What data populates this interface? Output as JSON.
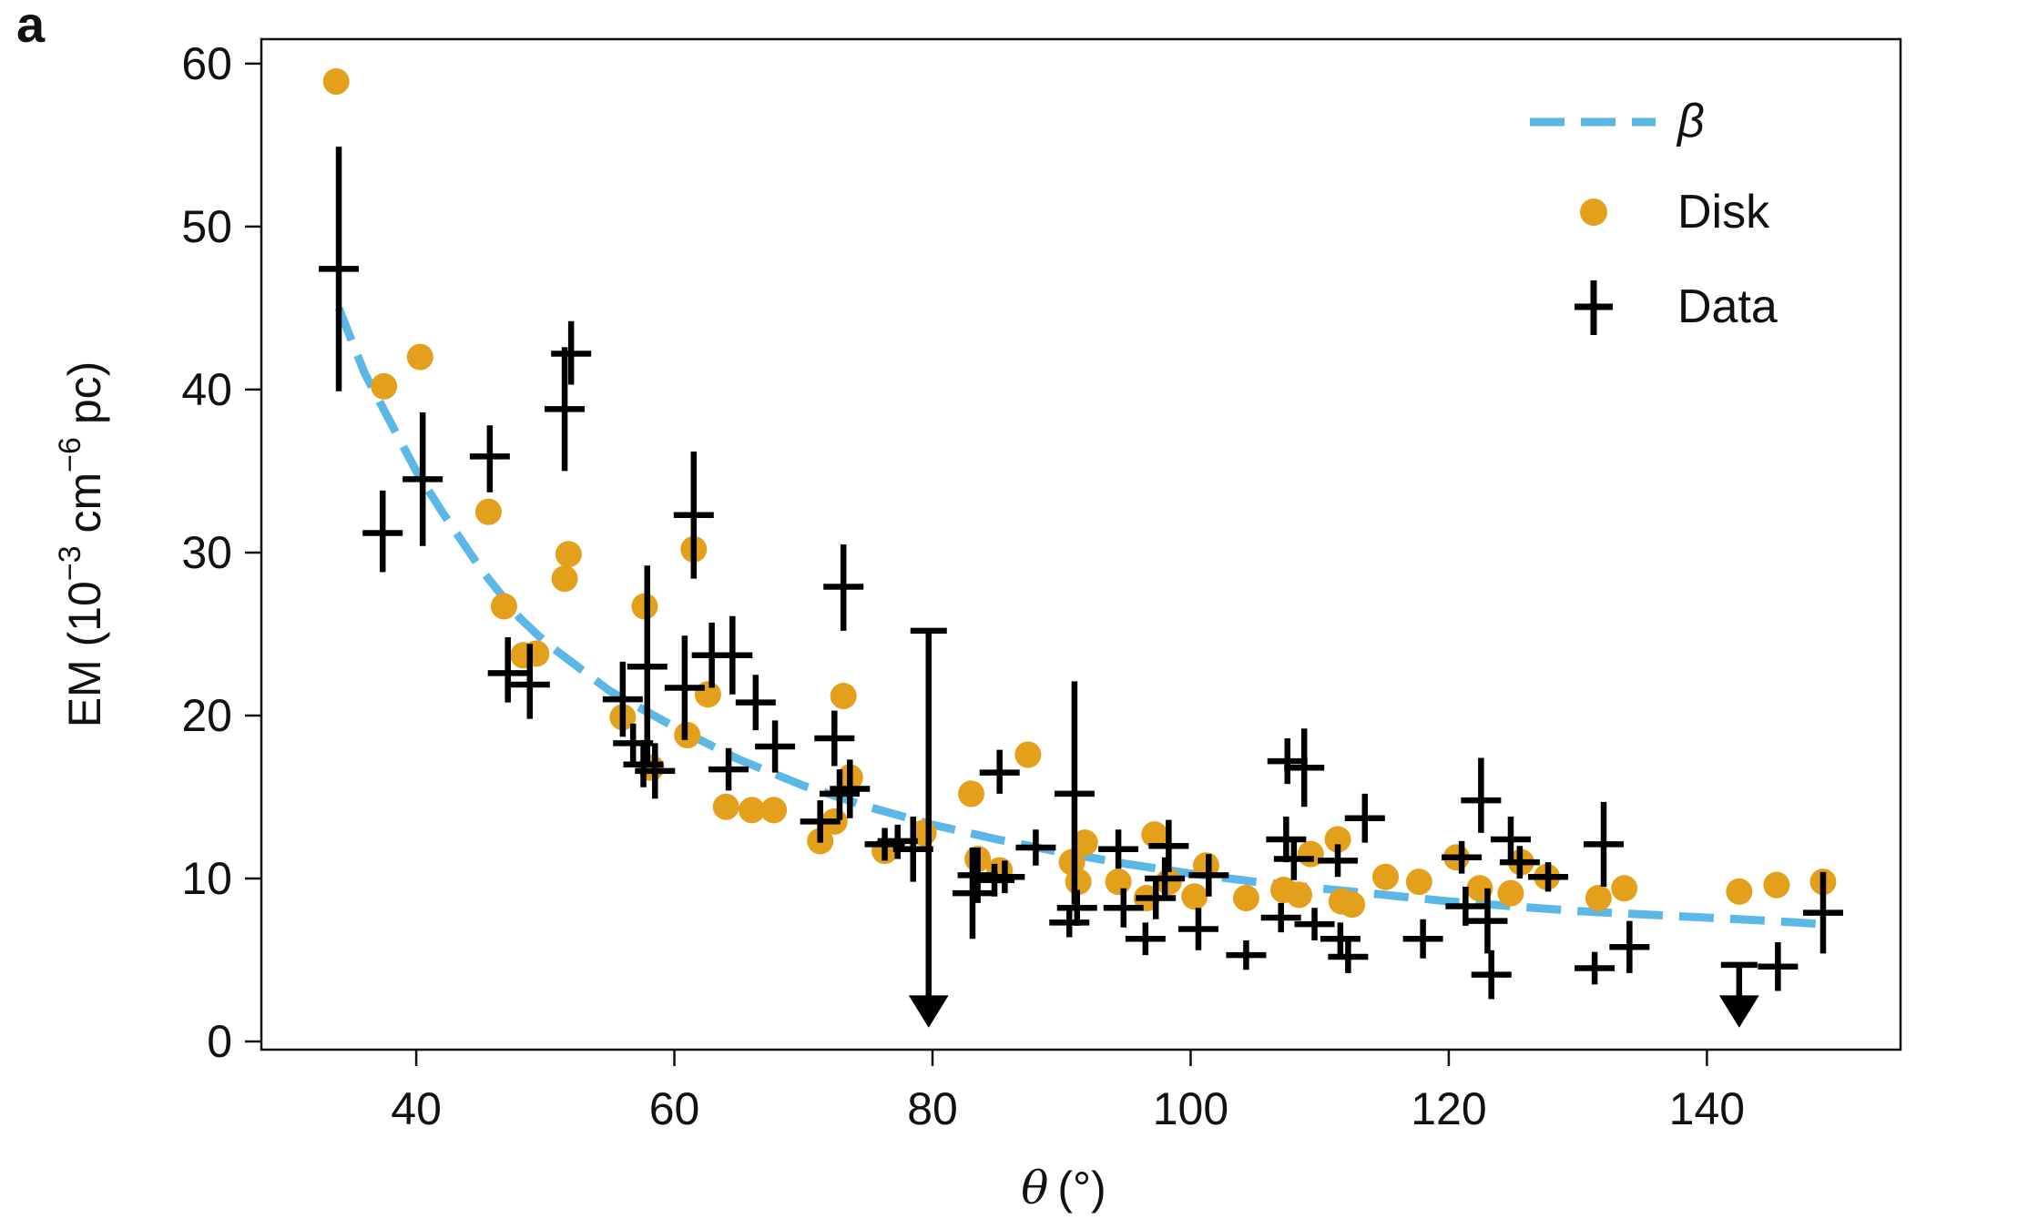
{
  "panel_label": "a",
  "colors": {
    "model": "#5bb8e6",
    "disk": "#e3a01b",
    "data": "#000000",
    "axis": "#111111"
  },
  "chart_data": {
    "type": "scatter",
    "xlabel_symbol": "θ",
    "xlabel_unit": "(°)",
    "ylabel": "EM (10",
    "ylabel_exp1": "−3",
    "ylabel_mid": " cm",
    "ylabel_exp2": "−6",
    "ylabel_end": " pc)",
    "xlim": [
      28,
      155
    ],
    "ylim": [
      -0.5,
      61.5
    ],
    "xticks": [
      40,
      60,
      80,
      100,
      120,
      140
    ],
    "yticks": [
      0,
      10,
      20,
      30,
      40,
      50,
      60
    ],
    "xtick_labels": [
      "40",
      "60",
      "80",
      "100",
      "120",
      "140"
    ],
    "ytick_labels": [
      "0",
      "10",
      "20",
      "30",
      "40",
      "50",
      "60"
    ],
    "grid": false,
    "legend_position": "top-right",
    "legend": {
      "model": "β",
      "disk": "Disk",
      "data": "Data"
    },
    "model_curve": {
      "name": "β",
      "style": "dashed",
      "x": [
        34,
        36,
        38,
        40,
        42,
        45,
        48,
        50,
        55,
        60,
        65,
        70,
        75,
        80,
        85,
        90,
        95,
        100,
        105,
        110,
        115,
        120,
        125,
        130,
        135,
        140,
        145,
        149
      ],
      "y": [
        45,
        41,
        38,
        35,
        32.5,
        29,
        26,
        24.5,
        21.5,
        19.3,
        17.3,
        15.7,
        14.4,
        13.3,
        12.4,
        11.6,
        10.9,
        10.3,
        9.8,
        9.4,
        9.0,
        8.6,
        8.3,
        8.0,
        7.8,
        7.6,
        7.4,
        7.2
      ]
    },
    "disk": {
      "name": "Disk",
      "points": [
        [
          33.8,
          58.9
        ],
        [
          37.5,
          40.2
        ],
        [
          40.3,
          42.0
        ],
        [
          45.6,
          32.5
        ],
        [
          46.8,
          26.7
        ],
        [
          48.3,
          23.7
        ],
        [
          49.3,
          23.8
        ],
        [
          51.5,
          28.4
        ],
        [
          51.8,
          29.9
        ],
        [
          56.0,
          19.9
        ],
        [
          57.7,
          26.7
        ],
        [
          58.2,
          16.8
        ],
        [
          61.0,
          18.8
        ],
        [
          61.5,
          30.2
        ],
        [
          62.6,
          21.3
        ],
        [
          64.0,
          14.4
        ],
        [
          66.0,
          14.2
        ],
        [
          67.7,
          14.2
        ],
        [
          71.3,
          12.3
        ],
        [
          72.4,
          13.5
        ],
        [
          73.1,
          21.2
        ],
        [
          73.6,
          16.2
        ],
        [
          76.3,
          11.7
        ],
        [
          79.3,
          12.8
        ],
        [
          83.0,
          15.2
        ],
        [
          83.5,
          11.2
        ],
        [
          85.2,
          10.5
        ],
        [
          87.4,
          17.6
        ],
        [
          90.8,
          11.0
        ],
        [
          91.3,
          9.8
        ],
        [
          91.8,
          12.2
        ],
        [
          94.4,
          9.8
        ],
        [
          96.6,
          8.8
        ],
        [
          97.2,
          12.7
        ],
        [
          98.3,
          9.8
        ],
        [
          100.3,
          8.9
        ],
        [
          101.2,
          10.8
        ],
        [
          104.3,
          8.8
        ],
        [
          107.2,
          9.3
        ],
        [
          108.4,
          9.0
        ],
        [
          109.3,
          11.5
        ],
        [
          111.4,
          12.4
        ],
        [
          111.7,
          8.6
        ],
        [
          112.5,
          8.4
        ],
        [
          115.1,
          10.1
        ],
        [
          117.7,
          9.8
        ],
        [
          120.6,
          11.3
        ],
        [
          122.4,
          9.4
        ],
        [
          124.8,
          9.1
        ],
        [
          125.6,
          11.0
        ],
        [
          127.6,
          10.1
        ],
        [
          131.6,
          8.8
        ],
        [
          133.6,
          9.4
        ],
        [
          142.5,
          9.2
        ],
        [
          145.4,
          9.6
        ],
        [
          149.0,
          9.8
        ]
      ]
    },
    "data": {
      "name": "Data",
      "points": [
        [
          34.0,
          47.4,
          39.9,
          54.9
        ],
        [
          37.4,
          31.2,
          28.8,
          33.8
        ],
        [
          40.5,
          34.5,
          30.4,
          38.6
        ],
        [
          45.7,
          35.9,
          33.7,
          37.8
        ],
        [
          47.1,
          22.6,
          20.8,
          24.8
        ],
        [
          48.8,
          21.9,
          19.8,
          24.4
        ],
        [
          51.5,
          38.8,
          35.0,
          42.6
        ],
        [
          52.0,
          42.2,
          40.3,
          44.2
        ],
        [
          56.0,
          21.0,
          18.7,
          23.3
        ],
        [
          56.8,
          18.3,
          17.0,
          19.5
        ],
        [
          57.6,
          17.0,
          15.6,
          18.5
        ],
        [
          57.9,
          23.0,
          16.9,
          29.2
        ],
        [
          58.5,
          16.6,
          14.9,
          18.3
        ],
        [
          60.8,
          21.7,
          18.5,
          24.9
        ],
        [
          61.5,
          32.3,
          28.4,
          36.2
        ],
        [
          62.9,
          23.7,
          21.7,
          25.7
        ],
        [
          64.2,
          16.7,
          15.4,
          18.0
        ],
        [
          64.5,
          23.7,
          21.3,
          26.1
        ],
        [
          66.3,
          20.8,
          19.1,
          22.5
        ],
        [
          67.8,
          18.1,
          16.5,
          19.7
        ],
        [
          71.3,
          13.5,
          12.2,
          14.8
        ],
        [
          72.4,
          18.6,
          16.9,
          20.3
        ],
        [
          72.8,
          15.2,
          13.6,
          16.7
        ],
        [
          73.1,
          27.9,
          25.2,
          30.5
        ],
        [
          73.6,
          15.5,
          13.7,
          17.3
        ],
        [
          76.3,
          12.1,
          11.1,
          13.1
        ],
        [
          77.3,
          12.3,
          11.2,
          13.3
        ],
        [
          78.5,
          11.8,
          9.8,
          13.8
        ],
        [
          83.1,
          9.1,
          6.3,
          11.9
        ],
        [
          83.5,
          10.2,
          8.5,
          11.9
        ],
        [
          84.8,
          9.9,
          8.9,
          10.9
        ],
        [
          85.6,
          10.1,
          9.1,
          11.1
        ],
        [
          85.2,
          16.5,
          15.2,
          17.9
        ],
        [
          88.0,
          11.9,
          10.8,
          13.0
        ],
        [
          90.6,
          7.3,
          6.4,
          8.2
        ],
        [
          91.0,
          15.2,
          8.4,
          22.1
        ],
        [
          91.2,
          8.2,
          7.1,
          9.3
        ],
        [
          94.4,
          11.8,
          10.6,
          13.0
        ],
        [
          94.8,
          8.2,
          7.0,
          9.4
        ],
        [
          96.5,
          6.3,
          5.3,
          7.3
        ],
        [
          97.3,
          8.8,
          7.5,
          10.1
        ],
        [
          98.0,
          10.0,
          8.7,
          11.3
        ],
        [
          98.3,
          12.0,
          10.4,
          13.6
        ],
        [
          100.6,
          6.9,
          5.6,
          8.2
        ],
        [
          101.4,
          10.2,
          8.9,
          11.5
        ],
        [
          104.3,
          5.3,
          4.4,
          6.2
        ],
        [
          107.0,
          7.6,
          6.7,
          8.5
        ],
        [
          107.4,
          12.4,
          11.0,
          13.8
        ],
        [
          107.5,
          17.2,
          15.8,
          18.6
        ],
        [
          108.0,
          11.2,
          9.9,
          12.5
        ],
        [
          108.8,
          16.8,
          14.4,
          19.2
        ],
        [
          109.6,
          7.2,
          6.2,
          8.2
        ],
        [
          111.4,
          11.1,
          10.1,
          12.1
        ],
        [
          111.6,
          6.3,
          5.3,
          7.3
        ],
        [
          112.2,
          5.2,
          4.2,
          6.2
        ],
        [
          113.5,
          13.7,
          12.2,
          15.2
        ],
        [
          118.0,
          6.3,
          5.1,
          7.5
        ],
        [
          121.3,
          8.3,
          7.1,
          9.5
        ],
        [
          121.0,
          11.3,
          10.3,
          12.3
        ],
        [
          122.5,
          14.8,
          12.8,
          17.4
        ],
        [
          123.0,
          7.4,
          5.4,
          9.4
        ],
        [
          123.3,
          4.1,
          2.6,
          5.6
        ],
        [
          124.8,
          12.4,
          11.0,
          13.8
        ],
        [
          125.5,
          11.0,
          10.0,
          12.0
        ],
        [
          127.7,
          10.1,
          9.2,
          11.0
        ],
        [
          131.3,
          4.5,
          3.5,
          5.5
        ],
        [
          132.0,
          12.1,
          9.5,
          14.7
        ],
        [
          134.0,
          5.8,
          4.2,
          7.4
        ],
        [
          145.5,
          4.6,
          3.1,
          6.1
        ],
        [
          149.0,
          7.9,
          5.4,
          10.4
        ]
      ],
      "upper_limits": [
        [
          79.7,
          25.2
        ],
        [
          142.5,
          4.7
        ]
      ]
    }
  }
}
